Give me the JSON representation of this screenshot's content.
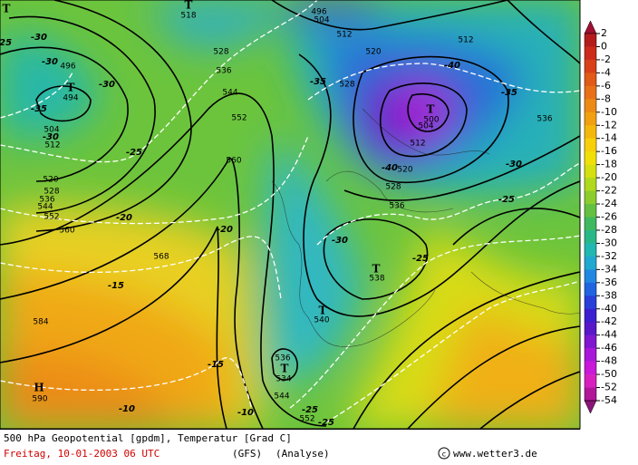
{
  "map": {
    "legend": {
      "ticks": [
        2,
        0,
        -2,
        -4,
        -6,
        -8,
        -10,
        -12,
        -14,
        -16,
        -18,
        -20,
        -22,
        -24,
        -26,
        -28,
        -30,
        -32,
        -34,
        -36,
        -38,
        -40,
        -42,
        -44,
        -46,
        -48,
        -50,
        -52,
        -54
      ],
      "colors": [
        "#a01030",
        "#b41c1c",
        "#cc2a1a",
        "#d8401a",
        "#e05a18",
        "#e87018",
        "#ec8a14",
        "#f0a010",
        "#f4b80c",
        "#f8d00a",
        "#f0e008",
        "#d4e010",
        "#b0d81c",
        "#8ccc2c",
        "#64c040",
        "#40b860",
        "#28b888",
        "#20b8b0",
        "#20a8d0",
        "#2088e0",
        "#2064e0",
        "#2840d8",
        "#3c20d0",
        "#5818c8",
        "#8018d0",
        "#a818d8",
        "#c818d8",
        "#d820c0",
        "#b01898",
        "#8c1478"
      ]
    },
    "labels": [
      "518",
      "496",
      "504",
      "512",
      "512",
      "520",
      "528",
      "536",
      "544",
      "552",
      "560",
      "528",
      "-35",
      "-40",
      "-35",
      "536",
      "T",
      "500",
      "504",
      "512",
      "-40",
      "520",
      "528",
      "-30",
      "-25",
      "536",
      "-30",
      "-25",
      "T",
      "538",
      "T",
      "540",
      "-20",
      "-20",
      "568",
      "-15",
      "584",
      "H",
      "590",
      "-10",
      "-15",
      "536",
      "T",
      "534",
      "544",
      "-25",
      "-10",
      "552",
      "-25",
      "-30",
      "496",
      "-30",
      "-30",
      "T",
      "494",
      "-35",
      "504",
      "-30",
      "512",
      "-25",
      "520",
      "528",
      "536",
      "544",
      "552",
      "560",
      "T",
      "-25",
      "T"
    ]
  },
  "footer": {
    "title": "500 hPa Geopotential [gpdm], Temperatur [Grad C]",
    "date": "Freitag, 10-01-2003  06 UTC",
    "model": "(GFS)",
    "run": "(Analyse)",
    "source": "www.wetter3.de"
  }
}
